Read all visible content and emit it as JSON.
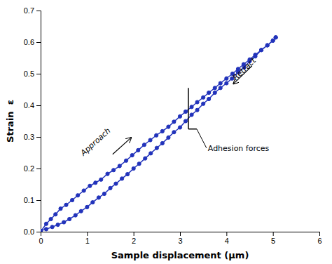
{
  "chart_data": {
    "type": "line",
    "xlabel": "Sample displacement (μm)",
    "ylabel": "Strain  ε",
    "xlim": [
      0,
      6
    ],
    "ylim": [
      0,
      0.7
    ],
    "xticks": [
      0,
      1,
      2,
      3,
      4,
      5,
      6
    ],
    "yticks": [
      {
        "value": 0.0,
        "label": "0.0"
      },
      0.1,
      0.2,
      0.3,
      0.4,
      0.5,
      0.6,
      0.7
    ],
    "grid": false,
    "series": [
      {
        "color": "#2233bb",
        "marker": "circle",
        "x": [
          0.0,
          0.12,
          0.22,
          0.32,
          0.43,
          0.55,
          0.68,
          0.8,
          0.93,
          1.06,
          1.18,
          1.3,
          1.44,
          1.57,
          1.7,
          1.84,
          1.97,
          2.1,
          2.23,
          2.36,
          2.49,
          2.62,
          2.75,
          2.87,
          3.0,
          3.12,
          3.25,
          3.37,
          3.5,
          3.62,
          3.75,
          3.87,
          4.0,
          4.13,
          4.25,
          4.37,
          4.5,
          4.62,
          4.75,
          4.88,
          5.0,
          5.06
        ],
        "values": [
          0.0,
          0.025,
          0.04,
          0.055,
          0.073,
          0.085,
          0.1,
          0.115,
          0.13,
          0.145,
          0.155,
          0.165,
          0.183,
          0.195,
          0.208,
          0.225,
          0.242,
          0.258,
          0.275,
          0.29,
          0.305,
          0.318,
          0.332,
          0.348,
          0.365,
          0.38,
          0.395,
          0.41,
          0.425,
          0.44,
          0.455,
          0.47,
          0.485,
          0.5,
          0.515,
          0.53,
          0.545,
          0.56,
          0.575,
          0.59,
          0.605,
          0.615
        ]
      },
      {
        "color": "#2233bb",
        "marker": "circle",
        "x": [
          5.06,
          5.0,
          4.88,
          4.75,
          4.62,
          4.5,
          4.38,
          4.25,
          4.12,
          4.0,
          3.87,
          3.75,
          3.62,
          3.5,
          3.37,
          3.25,
          3.12,
          3.0,
          2.87,
          2.75,
          2.62,
          2.5,
          2.37,
          2.25,
          2.12,
          2.0,
          1.87,
          1.75,
          1.62,
          1.5,
          1.37,
          1.25,
          1.12,
          1.0,
          0.87,
          0.75,
          0.62,
          0.5,
          0.37,
          0.25,
          0.12,
          0.0
        ],
        "values": [
          0.615,
          0.605,
          0.59,
          0.575,
          0.555,
          0.54,
          0.52,
          0.505,
          0.485,
          0.47,
          0.455,
          0.44,
          0.42,
          0.405,
          0.385,
          0.37,
          0.35,
          0.33,
          0.315,
          0.298,
          0.28,
          0.265,
          0.248,
          0.232,
          0.215,
          0.2,
          0.182,
          0.168,
          0.152,
          0.138,
          0.12,
          0.108,
          0.093,
          0.078,
          0.065,
          0.052,
          0.04,
          0.03,
          0.022,
          0.015,
          0.008,
          0.003
        ]
      }
    ],
    "bracket": {
      "x": 3.18,
      "y_top": 0.455,
      "y_bottom": 0.325,
      "x_end": 3.36
    },
    "annotations": [
      {
        "text": "Adhesion forces",
        "x": 3.6,
        "y": 0.265,
        "target_x": 3.36,
        "target_y": 0.325
      },
      {
        "text": "Approach",
        "x": 1.18,
        "y": 0.285,
        "arrow": {
          "x0": 1.55,
          "y0": 0.245,
          "x1": 1.95,
          "y1": 0.298
        }
      },
      {
        "text": "Retract",
        "x": 4.38,
        "y": 0.515,
        "arrow": {
          "x0": 4.55,
          "y0": 0.525,
          "x1": 4.15,
          "y1": 0.468
        }
      }
    ]
  }
}
